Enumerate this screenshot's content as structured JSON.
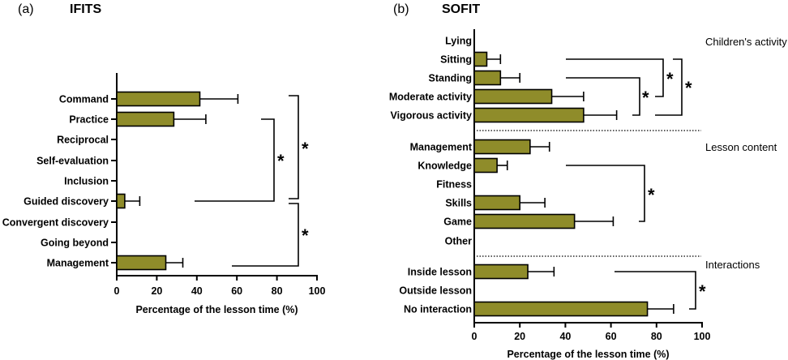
{
  "chart_data": [
    {
      "type": "bar",
      "orientation": "horizontal",
      "panel_label": "(a)",
      "title": "IFITS",
      "xlabel": "Percentage of the lesson time (%)",
      "xlim": [
        0,
        100
      ],
      "xticks": [
        "0",
        "20",
        "40",
        "60",
        "80",
        "100"
      ],
      "bar_color": "#8f8c2a",
      "categories": [
        "Command",
        "Practice",
        "Reciprocal",
        "Self-evaluation",
        "Inclusion",
        "Guided discovery",
        "Convergent discovery",
        "Going beyond",
        "Management"
      ],
      "values": [
        41.5,
        28.5,
        0,
        0,
        0,
        4,
        0,
        0,
        24.5
      ],
      "error_upper": [
        60.5,
        44.5,
        0,
        0,
        0,
        11.5,
        0,
        0,
        33
      ],
      "significance": [
        {
          "between": [
            "Practice",
            "Guided discovery"
          ],
          "label": "*"
        },
        {
          "between": [
            "Command",
            "Guided discovery"
          ],
          "label": "*"
        },
        {
          "between": [
            "Guided discovery",
            "Management"
          ],
          "label": "*"
        }
      ]
    },
    {
      "type": "bar",
      "orientation": "horizontal",
      "panel_label": "(b)",
      "title": "SOFIT",
      "xlabel": "Percentage of the lesson time (%)",
      "xlim": [
        0,
        100
      ],
      "xticks": [
        "0",
        "20",
        "40",
        "60",
        "80",
        "100"
      ],
      "bar_color": "#8f8c2a",
      "groups": [
        "Children's activity",
        "Lesson content",
        "Interactions"
      ],
      "categories": [
        "Lying",
        "Sitting",
        "Standing",
        "Moderate activity",
        "Vigorous activity",
        "Management",
        "Knowledge",
        "Fitness",
        "Skills",
        "Game",
        "Other",
        "Inside lesson",
        "Outside lesson",
        "No interaction"
      ],
      "values": [
        0,
        5.5,
        11.5,
        34,
        48,
        24.5,
        10,
        0,
        20,
        44,
        0,
        23.5,
        0,
        76
      ],
      "error_upper": [
        0,
        11.5,
        20,
        48,
        62.5,
        33,
        14.5,
        0,
        31,
        61,
        0,
        35,
        0,
        87.5
      ],
      "significance": [
        {
          "between": [
            "Sitting",
            "Moderate activity"
          ],
          "label": "*"
        },
        {
          "between": [
            "Standing",
            "Vigorous activity"
          ],
          "label": "*"
        },
        {
          "between": [
            "Sitting",
            "Vigorous activity"
          ],
          "label": "*"
        },
        {
          "between": [
            "Knowledge",
            "Game"
          ],
          "label": "*"
        },
        {
          "between": [
            "Inside lesson",
            "No interaction"
          ],
          "label": "*"
        }
      ]
    }
  ]
}
